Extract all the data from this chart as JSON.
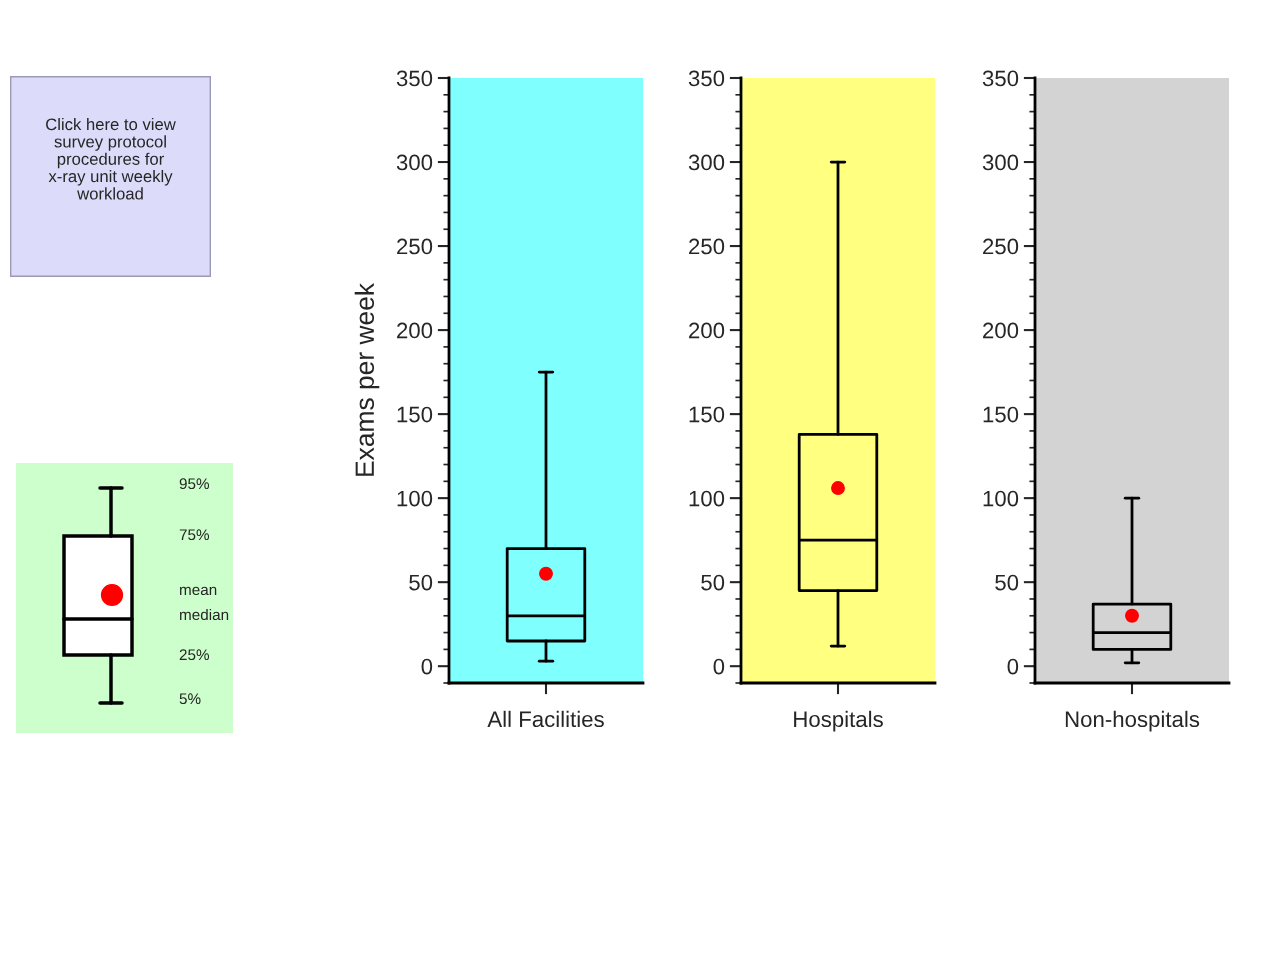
{
  "chart_data": [
    {
      "type": "box",
      "ylabel": "Exams per week",
      "categories": [
        "All Facilities"
      ],
      "boxes": [
        {
          "low": 3,
          "q1": 15,
          "median": 30,
          "q3": 70,
          "high": 175,
          "mean": 55
        }
      ],
      "ylim": [
        -10,
        350
      ],
      "yticks": [
        0,
        50,
        100,
        150,
        200,
        250,
        300,
        350
      ],
      "bands": [
        {
          "axis": "y",
          "from": -10,
          "to": 350,
          "color": "#80ffff"
        }
      ],
      "annotations": [
        "Click here to view\nsurvey protocol\nprocedures for\nx-ray unit weekly\nworkload",
        "95%",
        "75%",
        "mean",
        "median",
        "25%",
        "5%"
      ]
    },
    {
      "type": "box",
      "categories": [
        "Hospitals"
      ],
      "boxes": [
        {
          "low": 12,
          "q1": 45,
          "median": 75,
          "q3": 138,
          "high": 300,
          "mean": 106
        }
      ],
      "ylim": [
        -10,
        350
      ],
      "yticks": [
        0,
        50,
        100,
        150,
        200,
        250,
        300,
        350
      ],
      "bands": [
        {
          "axis": "y",
          "from": -10,
          "to": 350,
          "color": "#ffff80"
        }
      ]
    },
    {
      "type": "box",
      "categories": [
        "Non-hospitals"
      ],
      "boxes": [
        {
          "low": 2,
          "q1": 10,
          "median": 20,
          "q3": 37,
          "high": 100,
          "mean": 30
        }
      ],
      "ylim": [
        -10,
        350
      ],
      "yticks": [
        0,
        50,
        100,
        150,
        200,
        250,
        300,
        350
      ],
      "bands": [
        {
          "axis": "y",
          "from": -10,
          "to": 350,
          "color": "#d3d3d3"
        }
      ]
    }
  ]
}
